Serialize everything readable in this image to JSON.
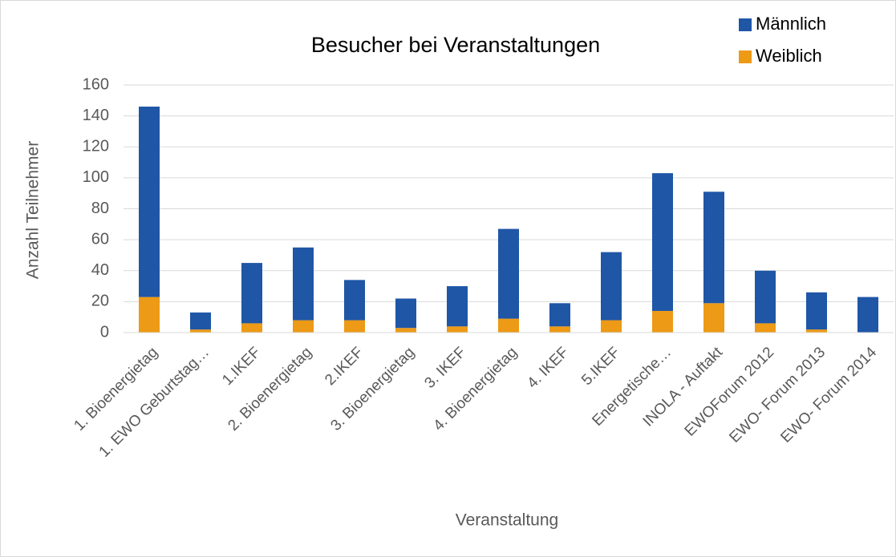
{
  "chart_data": {
    "type": "bar",
    "stacked": true,
    "title": "Besucher bei Veranstaltungen",
    "y_label": "Anzahl Teilnehmer",
    "x_label": "Veranstaltung",
    "categories": [
      "1. Bioenergietag",
      "1. EWO Geburtstag…",
      "1.IKEF",
      "2. Bioenergietag",
      "2.IKEF",
      "3. Bioenergietag",
      "3. IKEF",
      "4. Bioenergietag",
      "4. IKEF",
      "5.IKEF",
      "Energetische…",
      "INOLA - Auftakt",
      "EWOForum 2012",
      "EWO- Forum 2013",
      "EWO- Forum 2014"
    ],
    "series": [
      {
        "name": "Männlich",
        "color": "#1f56a6",
        "values": [
          123,
          11,
          39,
          47,
          26,
          19,
          26,
          58,
          15,
          44,
          89,
          72,
          34,
          24,
          23
        ]
      },
      {
        "name": "Weiblich",
        "color": "#ed9a16",
        "values": [
          23,
          2,
          6,
          8,
          8,
          3,
          4,
          9,
          4,
          8,
          14,
          19,
          6,
          2,
          0
        ]
      }
    ],
    "ylim": [
      0,
      160
    ],
    "yticks": [
      0,
      20,
      40,
      60,
      80,
      100,
      120,
      140,
      160
    ],
    "grid": true,
    "legend": "top-right"
  }
}
